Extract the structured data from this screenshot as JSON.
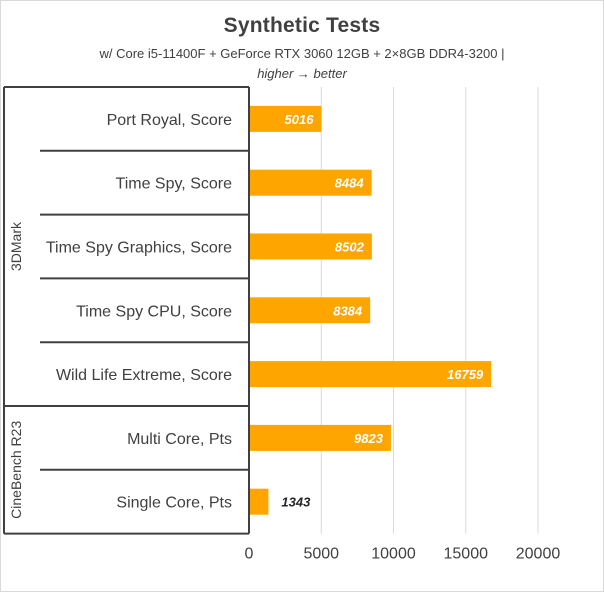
{
  "chart_data": {
    "type": "bar",
    "orientation": "horizontal",
    "title": "Synthetic Tests",
    "subtitle": "w/ Core i5-11400F + GeForce RTX 3060 12GB + 2×8GB DDR4-3200 |",
    "note": "higher → better",
    "categories": [
      "Port Royal, Score",
      "Time Spy, Score",
      "Time Spy Graphics, Score",
      "Time Spy CPU, Score",
      "Wild Life Extreme, Score",
      "Multi Core, Pts",
      "Single Core, Pts"
    ],
    "values": [
      5016,
      8484,
      8502,
      8384,
      16759,
      9823,
      1343
    ],
    "value_labels": [
      "5016",
      "8484",
      "8502",
      "8384",
      "16759",
      "9823",
      "1343"
    ],
    "groups": [
      {
        "name": "3DMark",
        "count": 5
      },
      {
        "name": "CineBench R23",
        "count": 2
      }
    ],
    "xlim": [
      0,
      20000
    ],
    "xticks": [
      0,
      5000,
      10000,
      15000,
      20000
    ],
    "xtick_labels": [
      "0",
      "5000",
      "10000",
      "15000",
      "20000"
    ],
    "xlabel": "",
    "ylabel": "",
    "grid": true,
    "legend": "none",
    "colors": {
      "bar": "#FFA500",
      "grid": "#d9d9d9",
      "text": "#404040",
      "border": "#404040"
    }
  }
}
